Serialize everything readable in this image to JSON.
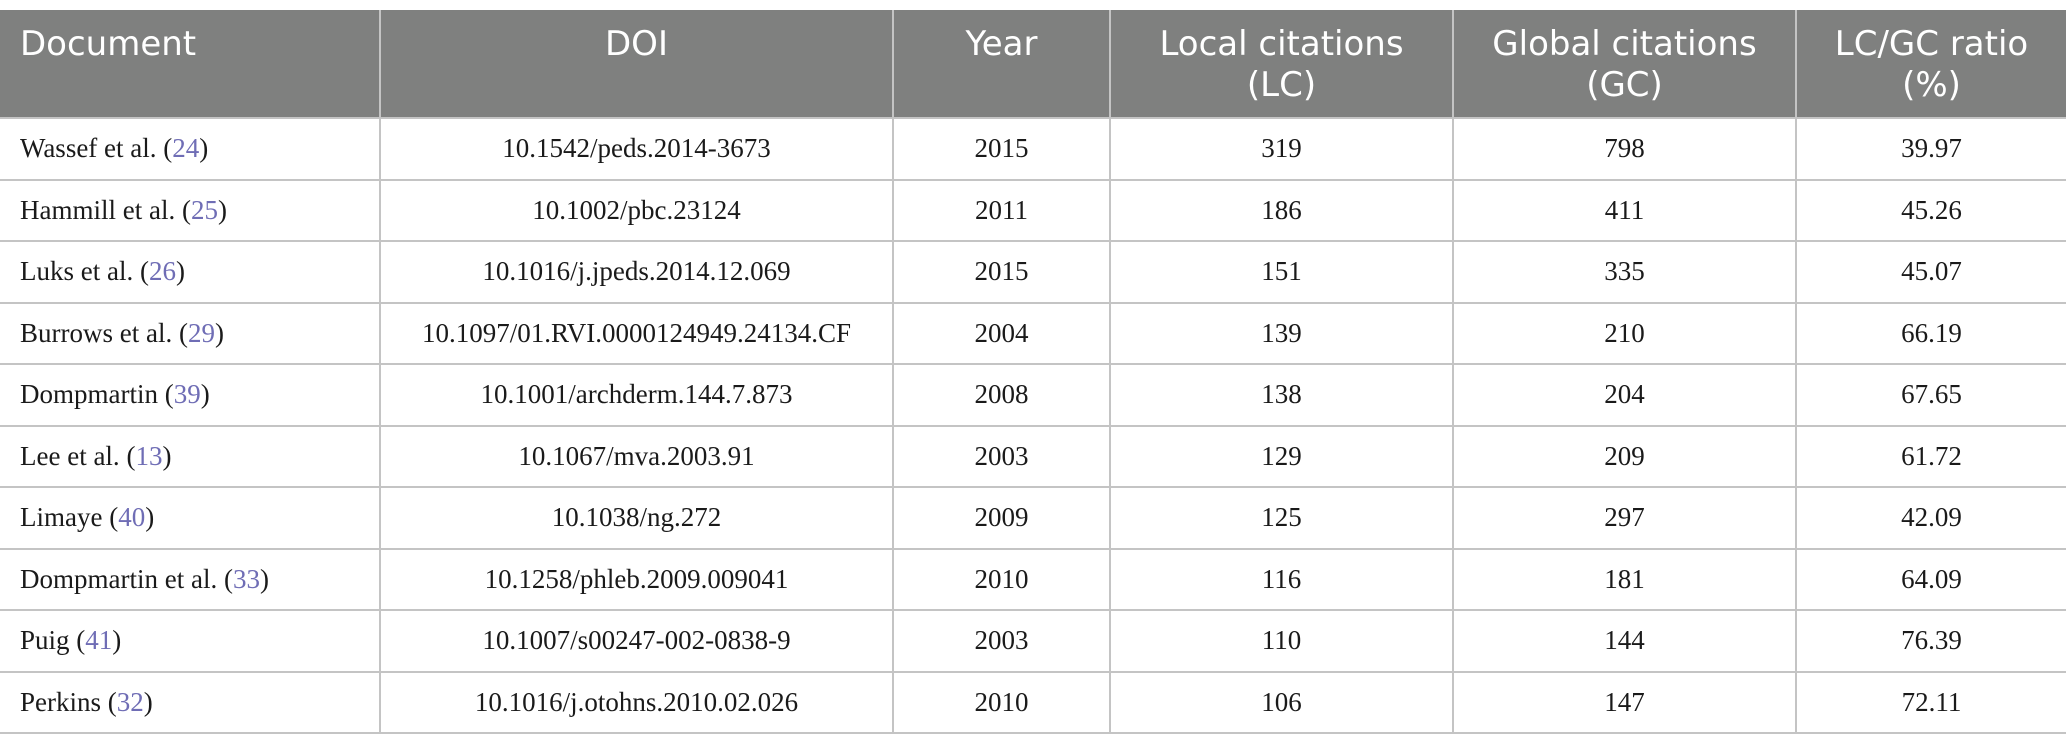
{
  "table": {
    "headers": [
      {
        "line1": "Document",
        "line2": ""
      },
      {
        "line1": "DOI",
        "line2": ""
      },
      {
        "line1": "Year",
        "line2": ""
      },
      {
        "line1": "Local citations",
        "line2": "(LC)"
      },
      {
        "line1": "Global citations",
        "line2": "(GC)"
      },
      {
        "line1": "LC/GC ratio",
        "line2": "(%)"
      }
    ],
    "rows": [
      {
        "author": "Wassef et al.",
        "ref": "24",
        "doi": "10.1542/peds.2014-3673",
        "year": "2015",
        "lc": "319",
        "gc": "798",
        "ratio": "39.97"
      },
      {
        "author": "Hammill et al.",
        "ref": "25",
        "doi": "10.1002/pbc.23124",
        "year": "2011",
        "lc": "186",
        "gc": "411",
        "ratio": "45.26"
      },
      {
        "author": "Luks et al.",
        "ref": "26",
        "doi": "10.1016/j.jpeds.2014.12.069",
        "year": "2015",
        "lc": "151",
        "gc": "335",
        "ratio": "45.07"
      },
      {
        "author": "Burrows et al.",
        "ref": "29",
        "doi": "10.1097/01.RVI.0000124949.24134.CF",
        "year": "2004",
        "lc": "139",
        "gc": "210",
        "ratio": "66.19"
      },
      {
        "author": "Dompmartin",
        "ref": "39",
        "doi": "10.1001/archderm.144.7.873",
        "year": "2008",
        "lc": "138",
        "gc": "204",
        "ratio": "67.65"
      },
      {
        "author": "Lee et al.",
        "ref": "13",
        "doi": "10.1067/mva.2003.91",
        "year": "2003",
        "lc": "129",
        "gc": "209",
        "ratio": "61.72"
      },
      {
        "author": "Limaye",
        "ref": "40",
        "doi": "10.1038/ng.272",
        "year": "2009",
        "lc": "125",
        "gc": "297",
        "ratio": "42.09"
      },
      {
        "author": "Dompmartin et al.",
        "ref": "33",
        "doi": "10.1258/phleb.2009.009041",
        "year": "2010",
        "lc": "116",
        "gc": "181",
        "ratio": "64.09"
      },
      {
        "author": "Puig",
        "ref": "41",
        "doi": "10.1007/s00247-002-0838-9",
        "year": "2003",
        "lc": "110",
        "gc": "144",
        "ratio": "76.39"
      },
      {
        "author": "Perkins",
        "ref": "32",
        "doi": "10.1016/j.otohns.2010.02.026",
        "year": "2010",
        "lc": "106",
        "gc": "147",
        "ratio": "72.11"
      }
    ],
    "colors": {
      "header_bg": "#7f807f",
      "header_text": "#ffffff",
      "grid": "#c4c4c4",
      "reference_link": "#6f6db5"
    }
  }
}
